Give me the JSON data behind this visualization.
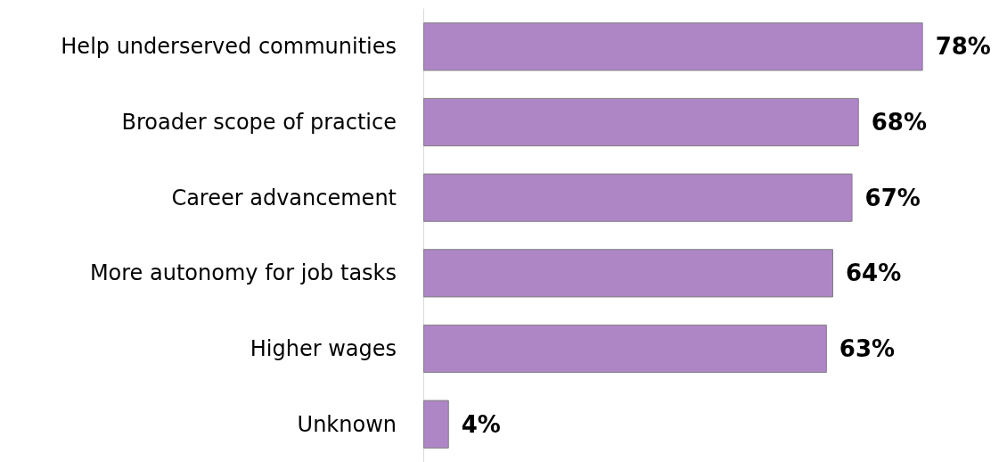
{
  "chart_data": {
    "type": "bar",
    "orientation": "horizontal",
    "categories": [
      "Help underserved communities",
      "Broader scope of practice",
      "Career advancement",
      "More autonomy for job tasks",
      "Higher wages",
      "Unknown"
    ],
    "values": [
      78,
      68,
      67,
      64,
      63,
      4
    ],
    "value_labels": [
      "78%",
      "68%",
      "67%",
      "64%",
      "63%",
      "4%"
    ],
    "color": "#ae86c6"
  }
}
